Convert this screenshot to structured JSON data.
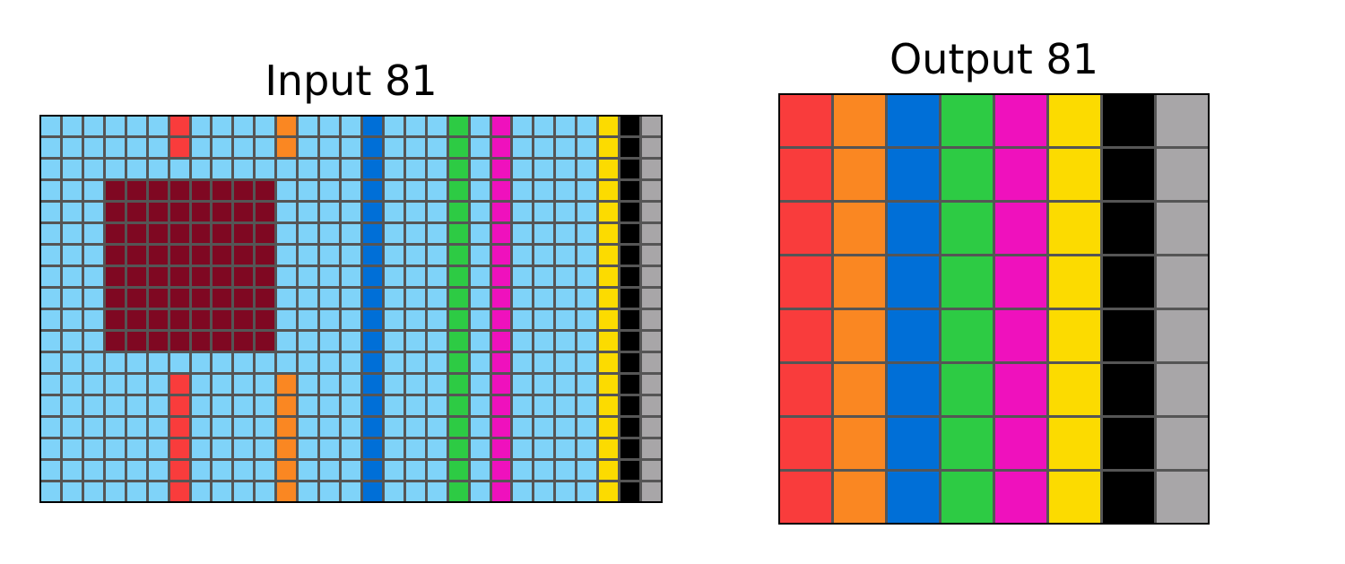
{
  "input": {
    "title": "Input 81",
    "background": "#7fd3f9",
    "rows": 18,
    "cols": 29,
    "vertical_lines": [
      {
        "col": 6,
        "color": "#f93c3c",
        "rows": [
          0,
          1,
          12,
          13,
          14,
          15,
          16,
          17
        ]
      },
      {
        "col": 11,
        "color": "#fa8722",
        "rows": [
          0,
          1,
          12,
          13,
          14,
          15,
          16,
          17
        ]
      },
      {
        "col": 15,
        "color": "#006fd7",
        "rows": "all"
      },
      {
        "col": 19,
        "color": "#2dcb44",
        "rows": "all"
      },
      {
        "col": 21,
        "color": "#ef11bd",
        "rows": "all"
      },
      {
        "col": 26,
        "color": "#fcdb00",
        "rows": "all"
      },
      {
        "col": 27,
        "color": "#000000",
        "rows": "all"
      },
      {
        "col": 28,
        "color": "#a8a6a8",
        "rows": "all"
      }
    ],
    "blocks": [
      {
        "row_start": 3,
        "row_end": 10,
        "col_start": 3,
        "col_end": 10,
        "color": "#7f0822"
      }
    ]
  },
  "output": {
    "title": "Output 81",
    "rows": 8,
    "column_colors": [
      "#f93c3c",
      "#fa8722",
      "#006fd7",
      "#2dcb44",
      "#ef11bd",
      "#fcdb00",
      "#000000",
      "#a8a6a8"
    ]
  }
}
